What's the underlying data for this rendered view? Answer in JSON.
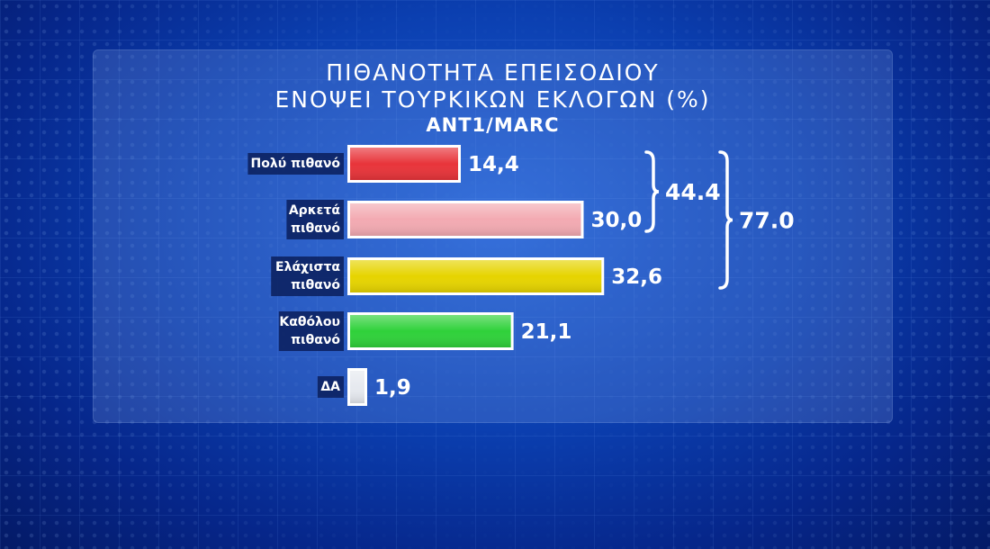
{
  "chart_data": {
    "type": "bar",
    "orientation": "horizontal",
    "title_lines": [
      "ΠΙΘΑΝΟΤΗΤΑ ΕΠΕΙΣΟΔΙΟΥ",
      "ΕΝΟΨΕΙ ΤΟΥΡΚΙΚΩΝ ΕΚΛΟΓΩΝ (%)"
    ],
    "source": "ANT1/MARC",
    "categories": [
      [
        "Πολύ πιθανό"
      ],
      [
        "Αρκετά",
        "πιθανό"
      ],
      [
        "Ελάχιστα",
        "πιθανό"
      ],
      [
        "Καθόλου",
        "πιθανό"
      ],
      [
        "ΔΑ"
      ]
    ],
    "values": [
      14.4,
      30.0,
      32.6,
      21.1,
      1.9
    ],
    "value_labels": [
      "14,4",
      "30,0",
      "32,6",
      "21,1",
      "1,9"
    ],
    "colors": [
      "#e8343a",
      "#f3aab2",
      "#e6d400",
      "#2fd13a",
      "#e6e9ef"
    ],
    "groups": [
      {
        "label": "44.4",
        "from": 0,
        "to": 1
      },
      {
        "label": "77.0",
        "from": 0,
        "to": 2
      }
    ],
    "xlim": [
      0,
      35
    ],
    "grid": false
  }
}
